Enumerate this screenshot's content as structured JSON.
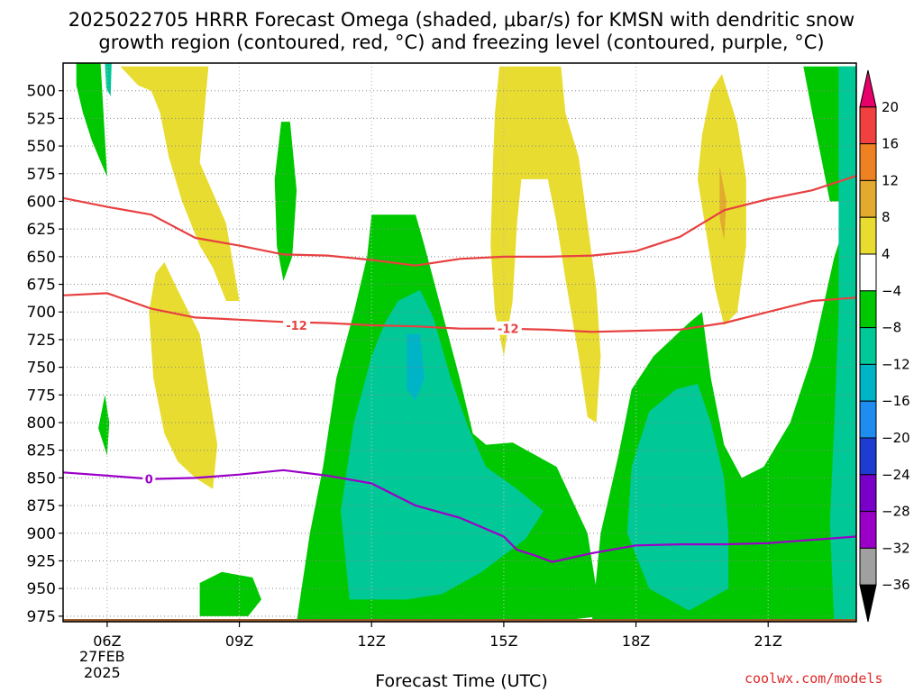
{
  "title": {
    "line1": "2025022705 HRRR Forecast Omega (shaded, μbar/s) for KMSN with dendritic snow",
    "line2": "growth region (contoured, red, °C) and freezing level (contoured, purple, °C)"
  },
  "date_label": {
    "day": "27FEB",
    "year": "2025"
  },
  "credit": "coolwx.com/models",
  "chart_data": {
    "type": "heatmap",
    "title": "2025022705 HRRR Forecast Omega (shaded, μbar/s) for KMSN with dendritic snow growth region (contoured, red, °C) and freezing level (contoured, purple, °C)",
    "xlabel": "Forecast Time (UTC)",
    "ylabel": "",
    "x_range_hours_utc": [
      5,
      23
    ],
    "x_ticks": [
      {
        "hour": 6,
        "label": "06Z"
      },
      {
        "hour": 9,
        "label": "09Z"
      },
      {
        "hour": 12,
        "label": "12Z"
      },
      {
        "hour": 15,
        "label": "15Z"
      },
      {
        "hour": 18,
        "label": "18Z"
      },
      {
        "hour": 21,
        "label": "21Z"
      }
    ],
    "y_range_hpa": [
      475,
      980
    ],
    "y_ticks": [
      500,
      525,
      550,
      575,
      600,
      625,
      650,
      675,
      700,
      725,
      750,
      775,
      800,
      825,
      850,
      875,
      900,
      925,
      950,
      975
    ],
    "grid": true,
    "colorbar": {
      "levels": [
        "20",
        "16",
        "12",
        "8",
        "4",
        "−4",
        "−8",
        "−12",
        "−16",
        "−20",
        "−24",
        "−28",
        "−32",
        "−36"
      ],
      "colors": [
        "#e8006a",
        "#f04040",
        "#ee8222",
        "#e2aa2e",
        "#e8dc30",
        "#ffffff",
        "#00c800",
        "#00c896",
        "#00b4c8",
        "#1e8cf0",
        "#1e3cd2",
        "#7800c8",
        "#9b00c8",
        "#a0a0a0",
        "#000000"
      ]
    },
    "fills": [
      {
        "level": "-4 to -8",
        "color": "#00c800",
        "region": "left column 06Z",
        "points": [
          [
            5.3,
            475
          ],
          [
            5.85,
            475
          ],
          [
            6.0,
            578
          ],
          [
            5.65,
            545
          ],
          [
            5.45,
            520
          ],
          [
            5.3,
            495
          ]
        ]
      },
      {
        "level": "-8 to -12",
        "color": "#00c896",
        "region": "small core 06Z",
        "points": [
          [
            5.95,
            475
          ],
          [
            6.1,
            475
          ],
          [
            6.08,
            505
          ],
          [
            5.98,
            498
          ]
        ]
      },
      {
        "level": "-4 to -8",
        "color": "#00c800",
        "region": "small cell 06Z",
        "points": [
          [
            5.95,
            775
          ],
          [
            6.05,
            800
          ],
          [
            6.0,
            830
          ],
          [
            5.8,
            805
          ]
        ]
      },
      {
        "level": "4 to 8",
        "color": "#e8dc30",
        "region": "07-09Z column",
        "points": [
          [
            6.3,
            478
          ],
          [
            8.3,
            478
          ],
          [
            8.1,
            565
          ],
          [
            8.7,
            620
          ],
          [
            9.0,
            690
          ],
          [
            8.7,
            690
          ],
          [
            8.4,
            660
          ],
          [
            8.1,
            640
          ],
          [
            7.7,
            600
          ],
          [
            7.4,
            560
          ],
          [
            7.2,
            520
          ],
          [
            7.0,
            500
          ],
          [
            6.7,
            495
          ]
        ]
      },
      {
        "level": "4 to 8",
        "color": "#e8dc30",
        "region": "07Z lower lobe",
        "points": [
          [
            7.1,
            665
          ],
          [
            7.3,
            655
          ],
          [
            7.6,
            680
          ],
          [
            8.1,
            720
          ],
          [
            8.3,
            770
          ],
          [
            8.5,
            820
          ],
          [
            8.4,
            860
          ],
          [
            8.0,
            850
          ],
          [
            7.6,
            835
          ],
          [
            7.3,
            810
          ],
          [
            7.05,
            760
          ],
          [
            6.95,
            700
          ]
        ]
      },
      {
        "level": "-4 to -8",
        "color": "#00c800",
        "region": "10Z sliver",
        "points": [
          [
            9.95,
            528
          ],
          [
            10.15,
            528
          ],
          [
            10.3,
            590
          ],
          [
            10.2,
            650
          ],
          [
            10.0,
            672
          ],
          [
            9.85,
            640
          ],
          [
            9.8,
            580
          ]
        ]
      },
      {
        "level": "-4 to -8",
        "color": "#00c800",
        "region": "midday ascent",
        "points": [
          [
            12.0,
            612
          ],
          [
            13.0,
            612
          ],
          [
            13.2,
            640
          ],
          [
            13.6,
            700
          ],
          [
            14.0,
            760
          ],
          [
            14.3,
            810
          ],
          [
            14.6,
            820
          ],
          [
            15.2,
            818
          ],
          [
            16.2,
            840
          ],
          [
            16.9,
            900
          ],
          [
            17.2,
            975
          ],
          [
            15.0,
            985
          ],
          [
            11.2,
            985
          ],
          [
            10.3,
            980
          ],
          [
            10.6,
            900
          ],
          [
            10.9,
            840
          ],
          [
            11.2,
            760
          ],
          [
            11.6,
            700
          ],
          [
            11.9,
            650
          ]
        ]
      },
      {
        "level": "-8 to -12",
        "color": "#00c896",
        "region": "midday core",
        "points": [
          [
            12.6,
            690
          ],
          [
            13.1,
            680
          ],
          [
            13.4,
            705
          ],
          [
            13.8,
            760
          ],
          [
            14.2,
            805
          ],
          [
            14.6,
            840
          ],
          [
            15.3,
            860
          ],
          [
            15.9,
            880
          ],
          [
            15.5,
            905
          ],
          [
            15.0,
            920
          ],
          [
            14.5,
            935
          ],
          [
            13.6,
            955
          ],
          [
            12.8,
            960
          ],
          [
            11.5,
            960
          ],
          [
            11.3,
            880
          ],
          [
            11.6,
            800
          ],
          [
            12.0,
            740
          ],
          [
            12.3,
            710
          ]
        ]
      },
      {
        "level": "-12 to -16",
        "color": "#00b4c8",
        "region": "midday inner cores",
        "points": [
          [
            12.8,
            720
          ],
          [
            13.1,
            720
          ],
          [
            13.2,
            760
          ],
          [
            13.0,
            780
          ],
          [
            12.8,
            770
          ]
        ]
      },
      {
        "level": "-4 to -8",
        "color": "#00c800",
        "region": "near-surface cell 08-09Z",
        "points": [
          [
            8.1,
            945
          ],
          [
            8.6,
            935
          ],
          [
            9.3,
            940
          ],
          [
            9.5,
            960
          ],
          [
            9.2,
            975
          ],
          [
            8.1,
            975
          ]
        ]
      },
      {
        "level": "4 to 8",
        "color": "#e8dc30",
        "region": "15Z column",
        "points": [
          [
            14.9,
            478
          ],
          [
            16.3,
            478
          ],
          [
            16.4,
            520
          ],
          [
            16.7,
            560
          ],
          [
            16.9,
            620
          ],
          [
            17.1,
            680
          ],
          [
            17.2,
            740
          ],
          [
            17.1,
            800
          ],
          [
            16.9,
            795
          ],
          [
            16.7,
            740
          ],
          [
            16.4,
            670
          ],
          [
            16.2,
            620
          ],
          [
            16.0,
            580
          ],
          [
            15.4,
            580
          ],
          [
            15.3,
            620
          ],
          [
            15.2,
            690
          ],
          [
            15.0,
            740
          ],
          [
            14.8,
            700
          ],
          [
            14.7,
            640
          ],
          [
            14.75,
            570
          ],
          [
            14.8,
            520
          ]
        ]
      },
      {
        "level": "-4 to -8",
        "color": "#00c800",
        "region": "18-20Z ascent",
        "points": [
          [
            19.2,
            710
          ],
          [
            19.5,
            700
          ],
          [
            19.7,
            760
          ],
          [
            20.0,
            820
          ],
          [
            20.4,
            850
          ],
          [
            20.9,
            840
          ],
          [
            21.5,
            800
          ],
          [
            22.0,
            740
          ],
          [
            22.5,
            650
          ],
          [
            23.0,
            590
          ],
          [
            23.0,
            985
          ],
          [
            18.0,
            985
          ],
          [
            17.0,
            980
          ],
          [
            17.2,
            900
          ],
          [
            17.6,
            830
          ],
          [
            17.9,
            770
          ],
          [
            18.4,
            740
          ]
        ]
      },
      {
        "level": "-8 to -12",
        "color": "#00c896",
        "region": "19Z core",
        "points": [
          [
            19.4,
            765
          ],
          [
            19.7,
            800
          ],
          [
            20.0,
            850
          ],
          [
            20.1,
            900
          ],
          [
            20.1,
            950
          ],
          [
            19.2,
            970
          ],
          [
            18.3,
            950
          ],
          [
            17.8,
            900
          ],
          [
            17.9,
            840
          ],
          [
            18.3,
            790
          ],
          [
            18.9,
            770
          ]
        ]
      },
      {
        "level": "4 to 8",
        "color": "#e8dc30",
        "region": "20Z column",
        "points": [
          [
            19.95,
            485
          ],
          [
            20.3,
            530
          ],
          [
            20.5,
            580
          ],
          [
            20.5,
            640
          ],
          [
            20.3,
            700
          ],
          [
            20.0,
            712
          ],
          [
            19.8,
            680
          ],
          [
            19.6,
            630
          ],
          [
            19.4,
            580
          ],
          [
            19.5,
            540
          ],
          [
            19.7,
            500
          ]
        ]
      },
      {
        "level": "8 to 12",
        "color": "#e2aa2e",
        "region": "20Z core",
        "points": [
          [
            19.9,
            568
          ],
          [
            20.05,
            600
          ],
          [
            20.0,
            635
          ],
          [
            19.9,
            615
          ]
        ]
      },
      {
        "level": "-4 to -8",
        "color": "#00c800",
        "region": "right edge upper",
        "points": [
          [
            21.8,
            478
          ],
          [
            23.0,
            478
          ],
          [
            23.0,
            600
          ],
          [
            22.4,
            600
          ],
          [
            22.2,
            560
          ],
          [
            22.0,
            520
          ]
        ]
      },
      {
        "level": "-8 to -12",
        "color": "#00c896",
        "region": "right edge core",
        "points": [
          [
            22.6,
            478
          ],
          [
            23.0,
            478
          ],
          [
            23.0,
            985
          ],
          [
            22.5,
            985
          ],
          [
            22.4,
            890
          ],
          [
            22.5,
            800
          ],
          [
            22.6,
            700
          ],
          [
            22.6,
            600
          ]
        ]
      }
    ],
    "contours": [
      {
        "name": "dendritic growth -12 upper",
        "color": "#e84040",
        "label": "",
        "points": [
          [
            5,
            597
          ],
          [
            6,
            605
          ],
          [
            7,
            612
          ],
          [
            8,
            633
          ],
          [
            9,
            640
          ],
          [
            10,
            648
          ],
          [
            11,
            649
          ],
          [
            12,
            653
          ],
          [
            13,
            658
          ],
          [
            14,
            652
          ],
          [
            15,
            650
          ],
          [
            16,
            650
          ],
          [
            17,
            649
          ],
          [
            18,
            645
          ],
          [
            19,
            632
          ],
          [
            20,
            608
          ],
          [
            21,
            598
          ],
          [
            22,
            590
          ],
          [
            23,
            577
          ]
        ]
      },
      {
        "name": "dendritic growth -12 lower",
        "color": "#e84040",
        "label": "-12",
        "label_at": [
          10.3,
          712
        ],
        "label2": "-12",
        "label2_at": [
          15.1,
          715
        ],
        "points": [
          [
            5,
            685
          ],
          [
            6,
            683
          ],
          [
            7,
            697
          ],
          [
            8,
            705
          ],
          [
            9,
            707
          ],
          [
            10,
            709
          ],
          [
            11,
            710
          ],
          [
            12,
            712
          ],
          [
            13,
            713
          ],
          [
            14,
            715
          ],
          [
            15,
            715
          ],
          [
            16,
            716
          ],
          [
            17,
            718
          ],
          [
            18,
            717
          ],
          [
            19,
            716
          ],
          [
            20,
            710
          ],
          [
            21,
            700
          ],
          [
            22,
            690
          ],
          [
            23,
            687
          ]
        ]
      },
      {
        "name": "freezing level 0",
        "color": "#9b00c8",
        "label": "0",
        "label_at": [
          6.95,
          851
        ],
        "points": [
          [
            5,
            845
          ],
          [
            6,
            848
          ],
          [
            7,
            851
          ],
          [
            8,
            850
          ],
          [
            9,
            847
          ],
          [
            10,
            843
          ],
          [
            11,
            848
          ],
          [
            12,
            855
          ],
          [
            13,
            875
          ],
          [
            14,
            886
          ],
          [
            15,
            903
          ],
          [
            15.3,
            915
          ],
          [
            15.7,
            920
          ],
          [
            16.1,
            926
          ],
          [
            17,
            918
          ],
          [
            18,
            911
          ],
          [
            19,
            910
          ],
          [
            20,
            910
          ],
          [
            21,
            909
          ],
          [
            22,
            906
          ],
          [
            23,
            903
          ]
        ]
      }
    ]
  }
}
